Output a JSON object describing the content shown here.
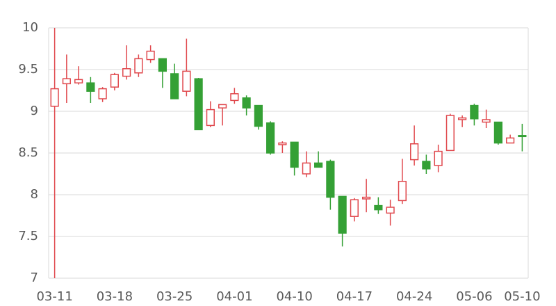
{
  "chart_data": {
    "type": "candlestick",
    "categories": [
      "03-11",
      null,
      null,
      null,
      null,
      "03-18",
      null,
      null,
      null,
      null,
      "03-25",
      null,
      null,
      null,
      null,
      "04-01",
      null,
      null,
      null,
      null,
      "04-10",
      null,
      null,
      null,
      null,
      "04-17",
      null,
      null,
      null,
      null,
      "04-24",
      null,
      null,
      null,
      null,
      "05-06",
      null,
      null,
      null,
      "05-10"
    ],
    "open": [
      9.06,
      9.33,
      9.34,
      9.34,
      9.15,
      9.29,
      9.42,
      9.46,
      9.62,
      9.63,
      9.45,
      9.24,
      9.39,
      8.83,
      9.04,
      9.13,
      9.16,
      9.07,
      8.86,
      8.6,
      8.63,
      8.25,
      8.38,
      8.4,
      7.98,
      7.74,
      7.95,
      7.87,
      7.78,
      7.93,
      8.42,
      8.4,
      8.35,
      8.53,
      8.9,
      9.07,
      8.87,
      8.87,
      8.62,
      8.71
    ],
    "high": [
      10,
      9.68,
      9.54,
      9.41,
      9.29,
      9.46,
      9.79,
      9.68,
      9.79,
      9.63,
      9.57,
      9.87,
      9.4,
      9.12,
      9.08,
      9.28,
      9.19,
      9.07,
      8.88,
      8.64,
      8.63,
      8.52,
      8.52,
      8.42,
      7.98,
      7.96,
      8.19,
      7.97,
      7.94,
      8.43,
      8.83,
      8.48,
      8.6,
      8.97,
      8.95,
      9.09,
      9.02,
      8.87,
      8.72,
      8.85
    ],
    "low": [
      7,
      9.1,
      9.32,
      9.1,
      9.11,
      9.25,
      9.38,
      9.41,
      9.58,
      9.28,
      9.15,
      9.18,
      8.78,
      8.81,
      8.83,
      9.09,
      8.95,
      8.78,
      8.48,
      8.5,
      8.23,
      8.21,
      8.33,
      7.82,
      7.38,
      7.68,
      7.79,
      7.77,
      7.63,
      7.89,
      8.35,
      8.25,
      8.27,
      8.53,
      8.81,
      8.83,
      8.8,
      8.6,
      8.62,
      8.52
    ],
    "close": [
      9.27,
      9.39,
      9.38,
      9.24,
      9.27,
      9.44,
      9.51,
      9.63,
      9.72,
      9.48,
      9.15,
      9.48,
      8.78,
      9.02,
      9.08,
      9.21,
      9.04,
      8.82,
      8.5,
      8.62,
      8.33,
      8.38,
      8.33,
      7.97,
      7.54,
      7.94,
      7.97,
      7.82,
      7.85,
      8.16,
      8.61,
      8.31,
      8.52,
      8.95,
      8.92,
      8.91,
      8.9,
      8.62,
      8.68,
      8.7
    ],
    "up_color": "#e0474c",
    "down_color": "#34a035",
    "ylim": [
      7,
      10
    ],
    "yticks": [
      7,
      7.5,
      8,
      8.5,
      9,
      9.5,
      10
    ],
    "grid": true
  }
}
